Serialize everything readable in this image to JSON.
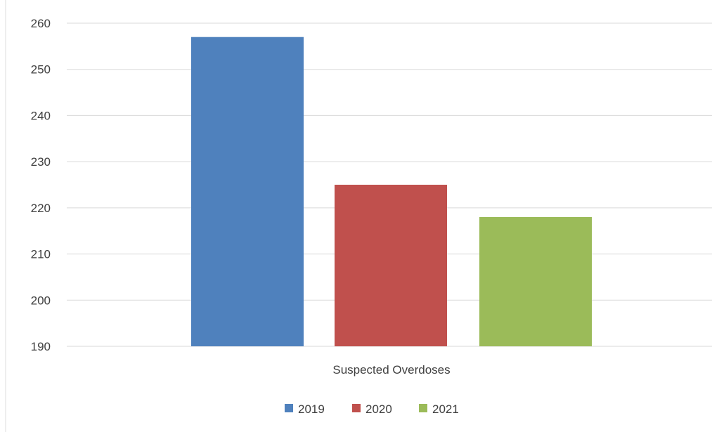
{
  "chart_data": {
    "type": "bar",
    "categories": [
      "Suspected Overdoses"
    ],
    "series": [
      {
        "name": "2019",
        "values": [
          257
        ],
        "color": "#4f81bd"
      },
      {
        "name": "2020",
        "values": [
          225
        ],
        "color": "#c0504d"
      },
      {
        "name": "2021",
        "values": [
          218
        ],
        "color": "#9bbb59"
      }
    ],
    "ylim": [
      190,
      260
    ],
    "yticks": [
      190,
      200,
      210,
      220,
      230,
      240,
      250,
      260
    ],
    "grid": true,
    "legend_position": "bottom",
    "title": "",
    "xlabel": "",
    "ylabel": ""
  }
}
